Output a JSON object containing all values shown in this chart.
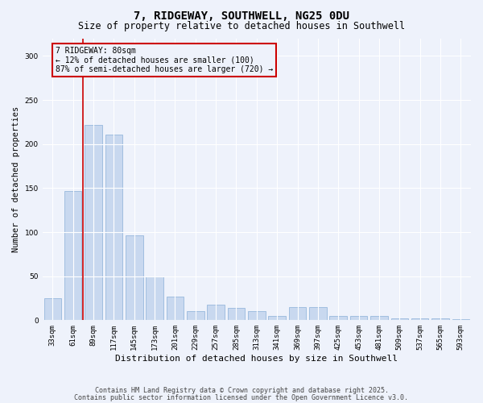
{
  "title": "7, RIDGEWAY, SOUTHWELL, NG25 0DU",
  "subtitle": "Size of property relative to detached houses in Southwell",
  "xlabel": "Distribution of detached houses by size in Southwell",
  "ylabel": "Number of detached properties",
  "categories": [
    "33sqm",
    "61sqm",
    "89sqm",
    "117sqm",
    "145sqm",
    "173sqm",
    "201sqm",
    "229sqm",
    "257sqm",
    "285sqm",
    "313sqm",
    "341sqm",
    "369sqm",
    "397sqm",
    "425sqm",
    "453sqm",
    "481sqm",
    "509sqm",
    "537sqm",
    "565sqm",
    "593sqm"
  ],
  "values": [
    25,
    147,
    222,
    211,
    96,
    50,
    27,
    10,
    18,
    14,
    10,
    5,
    15,
    15,
    5,
    5,
    5,
    2,
    2,
    2,
    1
  ],
  "bar_color": "#c8d8ef",
  "bar_edge_color": "#8ab0d8",
  "background_color": "#eef2fb",
  "grid_color": "#ffffff",
  "annotation_line1": "7 RIDGEWAY: 80sqm",
  "annotation_line2": "← 12% of detached houses are smaller (100)",
  "annotation_line3": "87% of semi-detached houses are larger (720) →",
  "annotation_box_color": "#cc0000",
  "vline_color": "#cc0000",
  "vline_x": 1.5,
  "ylim": [
    0,
    320
  ],
  "yticks": [
    0,
    50,
    100,
    150,
    200,
    250,
    300
  ],
  "footnote1": "Contains HM Land Registry data © Crown copyright and database right 2025.",
  "footnote2": "Contains public sector information licensed under the Open Government Licence v3.0.",
  "title_fontsize": 10,
  "subtitle_fontsize": 8.5,
  "xlabel_fontsize": 8,
  "ylabel_fontsize": 7.5,
  "tick_fontsize": 6.5,
  "annot_fontsize": 7,
  "footnote_fontsize": 6
}
